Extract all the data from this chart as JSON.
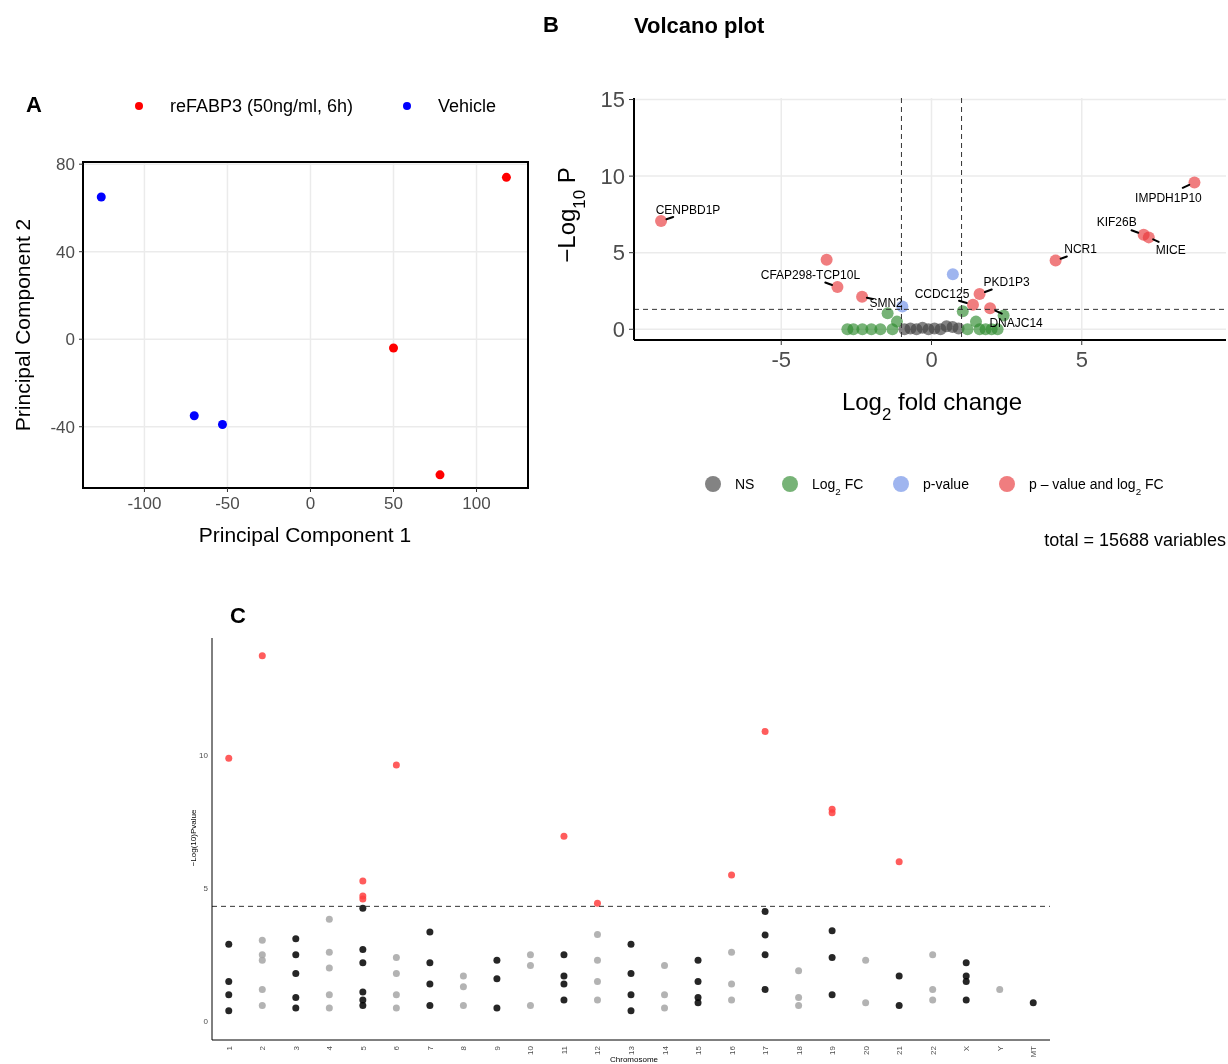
{
  "chart_data": [
    {
      "type": "scatter",
      "xlabel": "Principal Component 1",
      "ylabel": "Principal Component 2",
      "annotations": [
        "A"
      ],
      "xlim": [
        -137,
        131
      ],
      "ylim": [
        -68,
        81
      ],
      "xticks": [
        -100,
        -50,
        0,
        50,
        100
      ],
      "yticks": [
        -40,
        0,
        40,
        80
      ],
      "grid": true,
      "legend": "top",
      "marker": "circle",
      "series": [
        {
          "name": "reFABP3 (50ng/ml, 6h)",
          "color": "#ff0000",
          "x": [
            50,
            78,
            118
          ],
          "values": [
            -4,
            -62,
            74
          ]
        },
        {
          "name": "Vehicle",
          "color": "#0000ff",
          "x": [
            -126,
            -70,
            -53
          ],
          "values": [
            65,
            -35,
            -39
          ]
        }
      ]
    },
    {
      "type": "scatter",
      "title": "Volcano plot",
      "xlabel": "Log$_{2}$ fold change",
      "ylabel": "−Log$_{10}$ P",
      "annotations": [
        "B",
        {
          "text": "CENPBD1P",
          "x": -9.0,
          "y": 7.07
        },
        {
          "text": "CFAP298-TCP10L",
          "x": -3.13,
          "y": 2.76
        },
        {
          "text": "SMN2",
          "x": -2.31,
          "y": 2.13
        },
        {
          "text": "CCDC125",
          "x": 1.38,
          "y": 1.6
        },
        {
          "text": "PKD1P3",
          "x": 1.6,
          "y": 2.3
        },
        {
          "text": "DNAJC14",
          "x": 1.95,
          "y": 1.37
        },
        {
          "text": "NCR1",
          "x": 4.13,
          "y": 4.49
        },
        {
          "text": "KIF26B",
          "x": 7.06,
          "y": 6.17
        },
        {
          "text": "MICE",
          "x": 7.23,
          "y": 6.0
        },
        {
          "text": "IMPDH1P10",
          "x": 8.75,
          "y": 9.59
        },
        "total = 15688 variables"
      ],
      "xlim": [
        -9.9,
        9.8
      ],
      "ylim": [
        -0.7,
        15.1
      ],
      "xticks": [
        -5,
        0,
        5
      ],
      "yticks": [
        0,
        5,
        10,
        15
      ],
      "grid": true,
      "legend": "bottom",
      "marker": "circle",
      "ref_lines": [
        {
          "axis": "x",
          "value": -1,
          "line_style": "dashed",
          "color": "#333333"
        },
        {
          "axis": "x",
          "value": 1,
          "line_style": "dashed",
          "color": "#333333"
        },
        {
          "axis": "y",
          "value": 1.3,
          "line_style": "dashed",
          "color": "#333333"
        }
      ],
      "series": [
        {
          "name": "NS",
          "color": "#404040",
          "x": [
            -0.9,
            -0.7,
            -0.5,
            -0.3,
            -0.1,
            0.1,
            0.3,
            0.5,
            0.7,
            0.9
          ],
          "values": [
            0,
            0.05,
            0,
            0.1,
            0,
            0.05,
            0,
            0.2,
            0.15,
            0.05
          ]
        },
        {
          "name": "Log$_{2}$ FC",
          "color": "#2e8b2e",
          "x": [
            -2.8,
            -2.6,
            -2.3,
            -2.0,
            -1.7,
            -1.46,
            -1.3,
            -1.15,
            1.04,
            1.2,
            1.48,
            1.6,
            1.8,
            2.0,
            2.2,
            2.4
          ],
          "values": [
            0,
            0,
            0,
            0,
            0,
            1.04,
            0,
            0.5,
            1.18,
            0,
            0.5,
            0,
            0,
            0,
            0,
            0.9
          ]
        },
        {
          "name": "p-value",
          "color": "#6b8ee6",
          "x": [
            0.71,
            -0.97
          ],
          "values": [
            3.59,
            1.49
          ]
        },
        {
          "name": "p – value and log$_{2}$ FC",
          "color": "#e8383b",
          "x": [
            -9.0,
            -3.49,
            -3.13,
            -2.31,
            1.38,
            1.6,
            1.95,
            4.13,
            7.06,
            7.23,
            8.75
          ],
          "values": [
            7.07,
            4.54,
            2.76,
            2.13,
            1.6,
            2.3,
            1.37,
            4.49,
            6.17,
            6.0,
            9.59
          ]
        }
      ]
    },
    {
      "type": "scatter",
      "xlabel": "Chromosome",
      "ylabel": "−Log(10)Pvalue",
      "annotations": [
        "C"
      ],
      "ylim": [
        -0.7,
        14.4
      ],
      "yticks": [
        0,
        5,
        10
      ],
      "grid": false,
      "marker": "circle",
      "categories": [
        "1",
        "2",
        "3",
        "4",
        "5",
        "6",
        "7",
        "8",
        "9",
        "10",
        "11",
        "12",
        "13",
        "14",
        "15",
        "16",
        "17",
        "18",
        "19",
        "20",
        "21",
        "22",
        "X",
        "Y",
        "MT"
      ],
      "ref_lines": [
        {
          "axis": "y",
          "value": 4.32,
          "line_style": "dashed",
          "color": "#333333"
        }
      ],
      "series": [
        {
          "color": "#000000",
          "x": [
            "1",
            "1",
            "1",
            "1",
            "3",
            "3",
            "3",
            "3",
            "3",
            "5",
            "5",
            "5",
            "5",
            "5",
            "5",
            "7",
            "7",
            "7",
            "7",
            "9",
            "9",
            "9",
            "11",
            "11",
            "11",
            "11",
            "13",
            "13",
            "13",
            "13",
            "15",
            "15",
            "15",
            "15",
            "17",
            "17",
            "17",
            "17",
            "19",
            "19",
            "19",
            "21",
            "21",
            "X",
            "X",
            "X",
            "X",
            "MT"
          ],
          "values": [
            0.4,
            1.0,
            2.9,
            1.5,
            0.5,
            2.5,
            1.8,
            3.1,
            0.9,
            2.7,
            0.6,
            1.1,
            2.2,
            4.25,
            0.8,
            0.6,
            1.4,
            2.2,
            3.36,
            0.5,
            2.3,
            1.6,
            1.7,
            0.8,
            2.5,
            1.4,
            0.4,
            2.9,
            1.0,
            1.8,
            0.7,
            2.3,
            1.5,
            0.9,
            4.13,
            2.5,
            3.24,
            1.2,
            2.4,
            3.4,
            1.0,
            1.7,
            0.6,
            1.7,
            0.8,
            1.5,
            2.2,
            0.7
          ]
        },
        {
          "color": "#a6a6a6",
          "x": [
            "2",
            "2",
            "2",
            "2",
            "2",
            "4",
            "4",
            "4",
            "4",
            "4",
            "6",
            "6",
            "6",
            "6",
            "8",
            "8",
            "8",
            "10",
            "10",
            "10",
            "12",
            "12",
            "12",
            "12",
            "14",
            "14",
            "14",
            "16",
            "16",
            "16",
            "18",
            "18",
            "18",
            "20",
            "20",
            "22",
            "22",
            "22",
            "Y"
          ],
          "values": [
            1.2,
            3.05,
            0.6,
            2.3,
            2.5,
            0.5,
            2.6,
            3.84,
            1.0,
            2.0,
            2.4,
            1.0,
            1.8,
            0.5,
            1.7,
            0.6,
            1.3,
            0.6,
            2.5,
            2.1,
            3.26,
            0.8,
            2.3,
            1.5,
            0.5,
            2.1,
            1.0,
            2.6,
            0.8,
            1.4,
            0.6,
            1.9,
            0.9,
            2.3,
            0.7,
            0.8,
            2.5,
            1.2,
            1.2
          ]
        },
        {
          "color": "#ff4040",
          "x": [
            "1",
            "2",
            "5",
            "5",
            "5",
            "6",
            "11",
            "12",
            "16",
            "17",
            "19",
            "19",
            "21"
          ],
          "values": [
            9.88,
            13.73,
            4.71,
            4.6,
            5.27,
            9.63,
            6.95,
            4.44,
            5.5,
            10.89,
            7.84,
            7.97,
            6.0
          ]
        }
      ]
    }
  ]
}
